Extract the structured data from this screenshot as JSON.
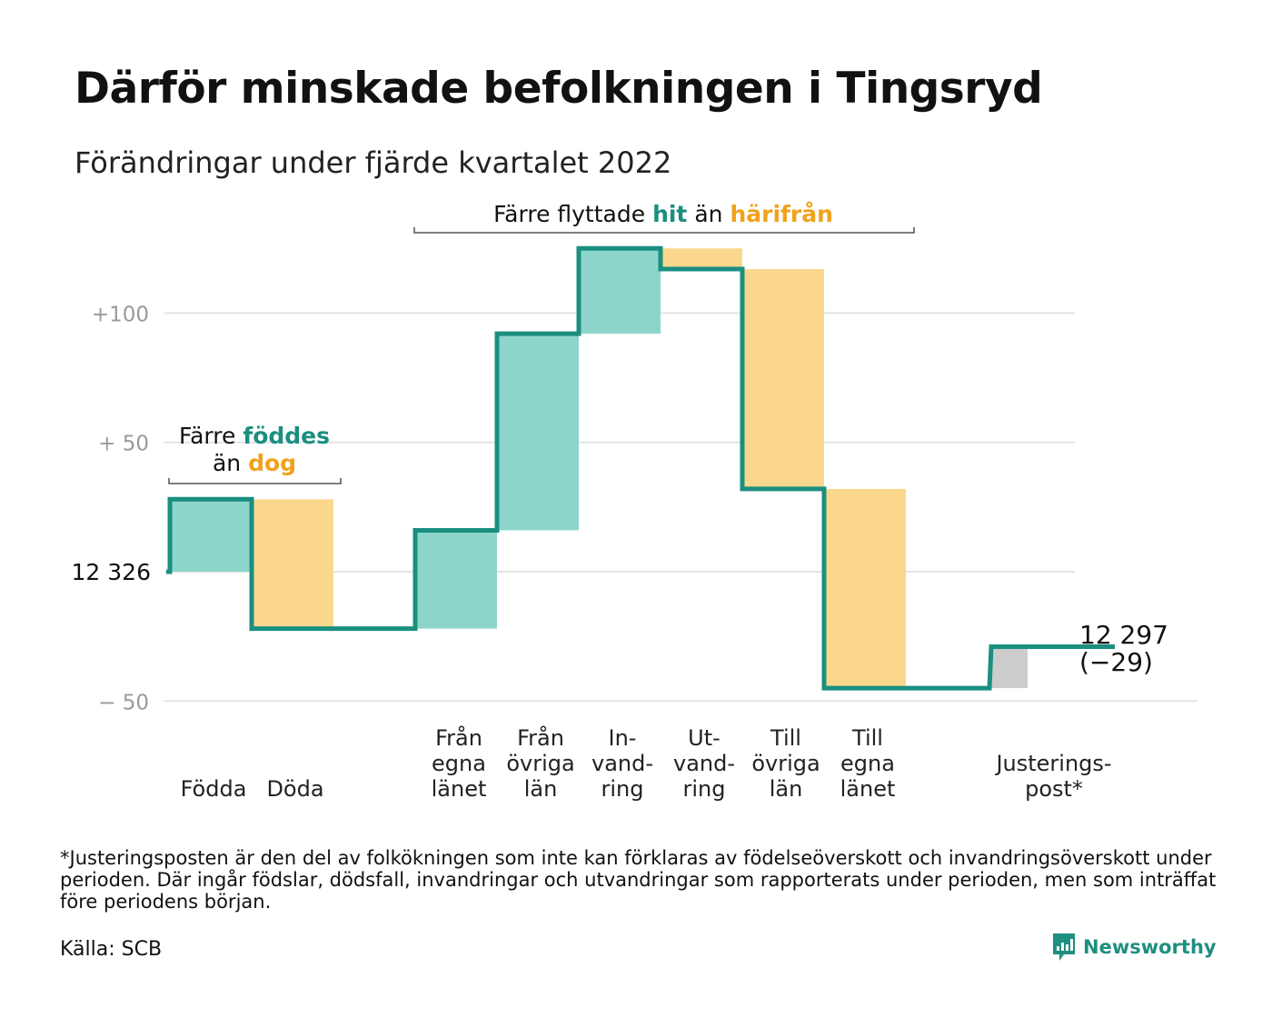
{
  "title": "Därför minskade befolkningen i Tingsryd",
  "subtitle": "Förändringar under fjärde kvartalet 2022",
  "colors": {
    "teal_fill": "#8dd5cb",
    "teal_line": "#1a8f80",
    "orange_fill": "#fbd78e",
    "orange_text": "#f0a21c",
    "adjust_fill": "#cccccc",
    "grid": "#e3e3e3"
  },
  "chart_data": {
    "type": "waterfall",
    "start_label": "12 326",
    "y_ticks": [
      {
        "value": 100,
        "label": "+100"
      },
      {
        "value": 50,
        "label": "+ 50"
      },
      {
        "value": 0,
        "label": "12 326"
      },
      {
        "value": -50,
        "label": "− 50"
      }
    ],
    "ylim": [
      -50,
      128
    ],
    "steps": [
      {
        "label": [
          "",
          "",
          "Födda"
        ],
        "value": 28,
        "kind": "in"
      },
      {
        "label": [
          "",
          "",
          "Döda"
        ],
        "value": -50,
        "kind": "out"
      },
      {
        "label": [
          "",
          "",
          ""
        ],
        "value": 0,
        "kind": "none"
      },
      {
        "label": [
          "Från",
          "egna",
          "länet"
        ],
        "value": 38,
        "kind": "in"
      },
      {
        "label": [
          "Från",
          "övriga",
          "län"
        ],
        "value": 76,
        "kind": "in"
      },
      {
        "label": [
          "In-",
          "vand-",
          "ring"
        ],
        "value": 33,
        "kind": "in"
      },
      {
        "label": [
          "Ut-",
          "vand-",
          "ring"
        ],
        "value": -8,
        "kind": "out"
      },
      {
        "label": [
          "Till",
          "övriga",
          "län"
        ],
        "value": -85,
        "kind": "out"
      },
      {
        "label": [
          "Till",
          "egna",
          "länet"
        ],
        "value": -77,
        "kind": "out"
      },
      {
        "label": [
          "",
          "",
          ""
        ],
        "value": 0,
        "kind": "none"
      },
      {
        "label": [
          "",
          "Justerings-",
          "post*"
        ],
        "value": 16,
        "kind": "adjust"
      }
    ],
    "end_label": "12 297",
    "end_change": "(−29)",
    "annotations": {
      "births": {
        "line1": "Färre ",
        "line1_highlight": "föddes",
        "line2": "än ",
        "line2_highlight": "dog"
      },
      "migration": {
        "part1": "Färre flyttade ",
        "highlight1": "hit",
        "part2": " än ",
        "highlight2": "härifrån"
      }
    }
  },
  "footnote": "*Justeringsposten är den del av folkökningen som inte kan förklaras av födelseöverskott och invandringsöverskott under perioden. Där ingår födslar, dödsfall, invandringar och utvandringar som rapporterats under perioden, men som inträffat före periodens början.",
  "source": "Källa: SCB",
  "brand": {
    "name": "Newsworthy",
    "icon": "newsworthy-logo-icon"
  }
}
